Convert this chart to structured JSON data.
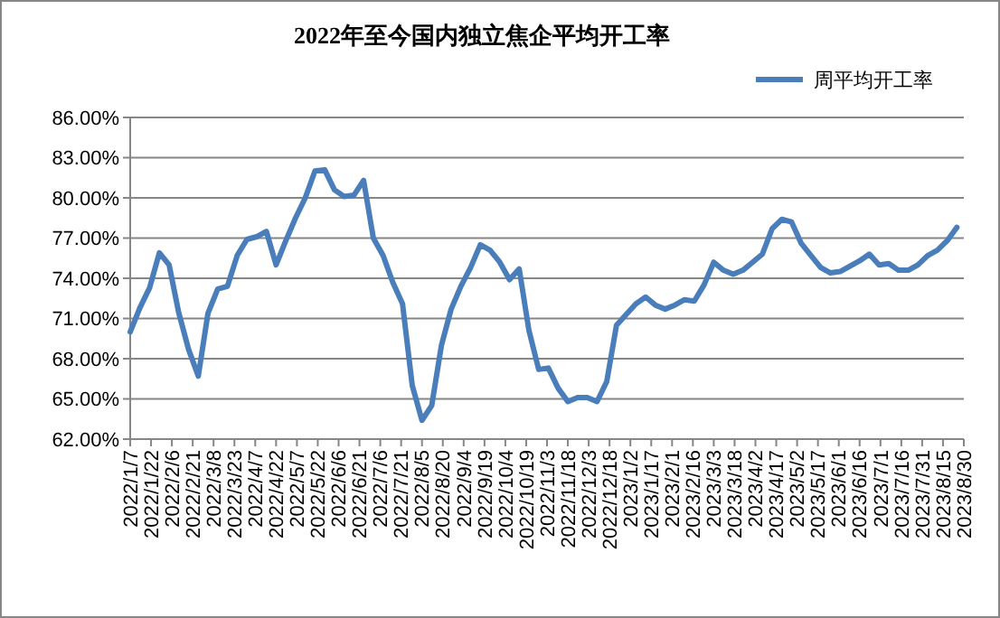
{
  "chart_data": {
    "type": "line",
    "title": "2022年至今国内独立焦企平均开工率",
    "legend": "top right",
    "grid": "y",
    "marker": "none",
    "line_style": "solid",
    "x": [
      "2022-01-07",
      "2022-01-14",
      "2022-01-21",
      "2022-01-28",
      "2022-02-04",
      "2022-02-11",
      "2022-02-18",
      "2022-02-25",
      "2022-03-04",
      "2022-03-11",
      "2022-03-18",
      "2022-03-25",
      "2022-04-01",
      "2022-04-08",
      "2022-04-15",
      "2022-04-22",
      "2022-04-29",
      "2022-05-06",
      "2022-05-13",
      "2022-05-20",
      "2022-05-27",
      "2022-06-03",
      "2022-06-10",
      "2022-06-17",
      "2022-06-24",
      "2022-07-01",
      "2022-07-08",
      "2022-07-15",
      "2022-07-22",
      "2022-07-29",
      "2022-08-05",
      "2022-08-12",
      "2022-08-19",
      "2022-08-26",
      "2022-09-02",
      "2022-09-09",
      "2022-09-16",
      "2022-09-23",
      "2022-09-30",
      "2022-10-07",
      "2022-10-14",
      "2022-10-21",
      "2022-10-28",
      "2022-11-04",
      "2022-11-11",
      "2022-11-18",
      "2022-11-25",
      "2022-12-02",
      "2022-12-09",
      "2022-12-16",
      "2022-12-23",
      "2022-12-30",
      "2023-01-06",
      "2023-01-13",
      "2023-01-20",
      "2023-01-27",
      "2023-02-03",
      "2023-02-10",
      "2023-02-17",
      "2023-02-24",
      "2023-03-03",
      "2023-03-10",
      "2023-03-17",
      "2023-03-24",
      "2023-03-31",
      "2023-04-07",
      "2023-04-14",
      "2023-04-21",
      "2023-04-28",
      "2023-05-05",
      "2023-05-12",
      "2023-05-19",
      "2023-05-26",
      "2023-06-02",
      "2023-06-09",
      "2023-06-16",
      "2023-06-23",
      "2023-06-30",
      "2023-07-07",
      "2023-07-14",
      "2023-07-21",
      "2023-07-28",
      "2023-08-04",
      "2023-08-11",
      "2023-08-18",
      "2023-08-25"
    ],
    "series": [
      {
        "name": "周平均开工率",
        "color": "#4a7ebb",
        "values": [
          70.0,
          71.8,
          73.3,
          75.9,
          75.0,
          71.4,
          68.7,
          66.7,
          71.4,
          73.2,
          73.4,
          75.7,
          76.9,
          77.1,
          77.5,
          75.0,
          76.8,
          78.5,
          80.0,
          82.0,
          82.1,
          80.6,
          80.1,
          80.2,
          81.3,
          77.0,
          75.7,
          73.7,
          72.1,
          66.0,
          63.4,
          64.5,
          69.0,
          71.7,
          73.4,
          74.8,
          76.5,
          76.1,
          75.2,
          73.9,
          74.7,
          70.1,
          67.2,
          67.3,
          65.8,
          64.8,
          65.1,
          65.1,
          64.8,
          66.3,
          70.5,
          71.3,
          72.1,
          72.6,
          72.0,
          71.7,
          72.0,
          72.4,
          72.3,
          73.5,
          75.2,
          74.6,
          74.3,
          74.6,
          75.2,
          75.8,
          77.7,
          78.4,
          78.2,
          76.6,
          75.7,
          74.8,
          74.4,
          74.5,
          74.9,
          75.3,
          75.8,
          75.0,
          75.1,
          74.6,
          74.6,
          75.0,
          75.7,
          76.1,
          76.8,
          77.8
        ]
      }
    ],
    "ylim": [
      62,
      86
    ],
    "yticks": [
      {
        "value": 62,
        "label": "62.00%"
      },
      {
        "value": 65,
        "label": "65.00%"
      },
      {
        "value": 68,
        "label": "68.00%"
      },
      {
        "value": 71,
        "label": "71.00%"
      },
      {
        "value": 74,
        "label": "74.00%"
      },
      {
        "value": 77,
        "label": "77.00%"
      },
      {
        "value": 80,
        "label": "80.00%"
      },
      {
        "value": 83,
        "label": "83.00%"
      },
      {
        "value": 86,
        "label": "86.00%"
      }
    ],
    "xlim": [
      "2022-01-07",
      "2023-08-30"
    ],
    "xticks": [
      {
        "value": "2022-01-07",
        "label": "2022/1/7"
      },
      {
        "value": "2022-01-22",
        "label": "2022/1/22"
      },
      {
        "value": "2022-02-06",
        "label": "2022/2/6"
      },
      {
        "value": "2022-02-21",
        "label": "2022/2/21"
      },
      {
        "value": "2022-03-08",
        "label": "2022/3/8"
      },
      {
        "value": "2022-03-23",
        "label": "2022/3/23"
      },
      {
        "value": "2022-04-07",
        "label": "2022/4/7"
      },
      {
        "value": "2022-04-22",
        "label": "2022/4/22"
      },
      {
        "value": "2022-05-07",
        "label": "2022/5/7"
      },
      {
        "value": "2022-05-22",
        "label": "2022/5/22"
      },
      {
        "value": "2022-06-06",
        "label": "2022/6/6"
      },
      {
        "value": "2022-06-21",
        "label": "2022/6/21"
      },
      {
        "value": "2022-07-06",
        "label": "2022/7/6"
      },
      {
        "value": "2022-07-21",
        "label": "2022/7/21"
      },
      {
        "value": "2022-08-05",
        "label": "2022/8/5"
      },
      {
        "value": "2022-08-20",
        "label": "2022/8/20"
      },
      {
        "value": "2022-09-04",
        "label": "2022/9/4"
      },
      {
        "value": "2022-09-19",
        "label": "2022/9/19"
      },
      {
        "value": "2022-10-04",
        "label": "2022/10/4"
      },
      {
        "value": "2022-10-19",
        "label": "2022/10/19"
      },
      {
        "value": "2022-11-03",
        "label": "2022/11/3"
      },
      {
        "value": "2022-11-18",
        "label": "2022/11/18"
      },
      {
        "value": "2022-12-03",
        "label": "2022/12/3"
      },
      {
        "value": "2022-12-18",
        "label": "2022/12/18"
      },
      {
        "value": "2023-01-02",
        "label": "2023/1/2"
      },
      {
        "value": "2023-01-17",
        "label": "2023/1/17"
      },
      {
        "value": "2023-02-01",
        "label": "2023/2/1"
      },
      {
        "value": "2023-02-16",
        "label": "2023/2/16"
      },
      {
        "value": "2023-03-03",
        "label": "2023/3/3"
      },
      {
        "value": "2023-03-18",
        "label": "2023/3/18"
      },
      {
        "value": "2023-04-02",
        "label": "2023/4/2"
      },
      {
        "value": "2023-04-17",
        "label": "2023/4/17"
      },
      {
        "value": "2023-05-02",
        "label": "2023/5/2"
      },
      {
        "value": "2023-05-17",
        "label": "2023/5/17"
      },
      {
        "value": "2023-06-01",
        "label": "2023/6/1"
      },
      {
        "value": "2023-06-16",
        "label": "2023/6/16"
      },
      {
        "value": "2023-07-01",
        "label": "2023/7/1"
      },
      {
        "value": "2023-07-16",
        "label": "2023/7/16"
      },
      {
        "value": "2023-07-31",
        "label": "2023/7/31"
      },
      {
        "value": "2023-08-15",
        "label": "2023/8/15"
      },
      {
        "value": "2023-08-30",
        "label": "2023/8/30"
      }
    ]
  }
}
